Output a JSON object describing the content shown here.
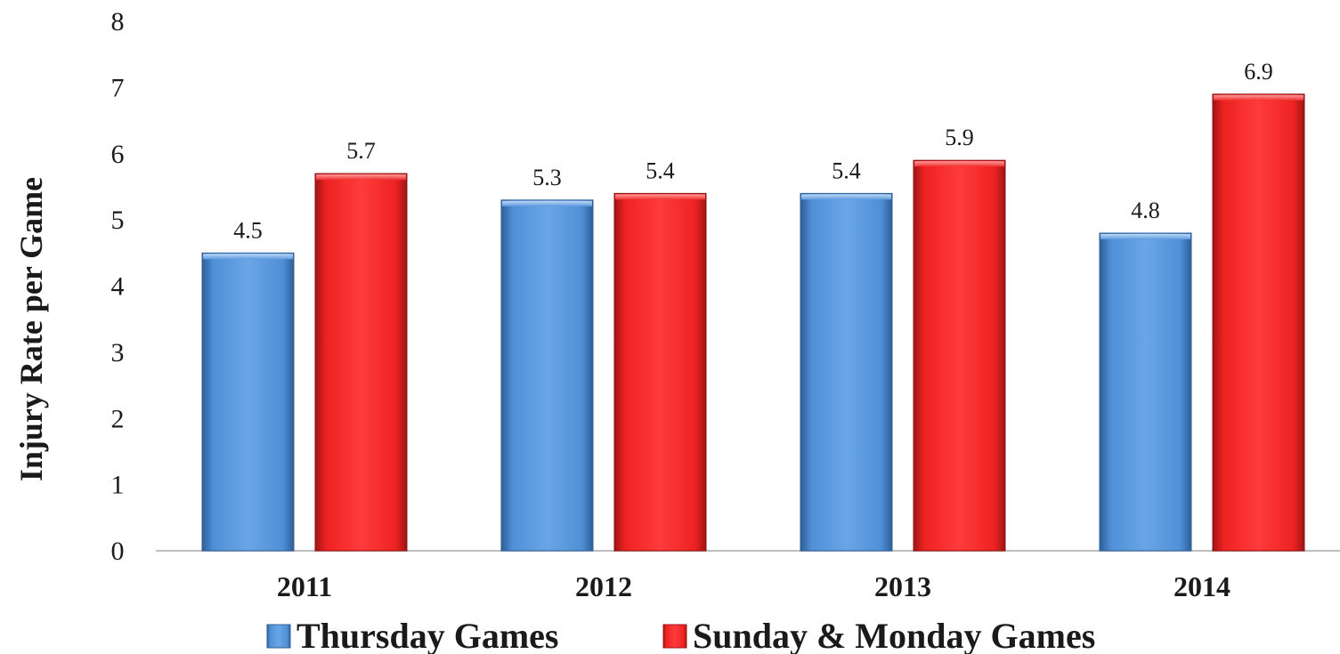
{
  "chart_data": {
    "type": "bar",
    "categories": [
      "2011",
      "2012",
      "2013",
      "2014"
    ],
    "series": [
      {
        "name": "Thursday Games",
        "values": [
          4.5,
          5.3,
          5.4,
          4.8
        ],
        "color": "#4f8fd6"
      },
      {
        "name": "Sunday & Monday Games",
        "values": [
          5.7,
          5.4,
          5.9,
          6.9
        ],
        "color": "#ee2222"
      }
    ],
    "value_labels": [
      [
        "4.5",
        "5.3",
        "5.4",
        "4.8"
      ],
      [
        "5.7",
        "5.4",
        "5.9",
        "6.9"
      ]
    ],
    "yticks": [
      "0",
      "1",
      "2",
      "3",
      "4",
      "5",
      "6",
      "7",
      "8"
    ],
    "ylabel": "Injury Rate per Game",
    "ylim": [
      0,
      8
    ],
    "grid": false,
    "legend_position": "bottom"
  }
}
